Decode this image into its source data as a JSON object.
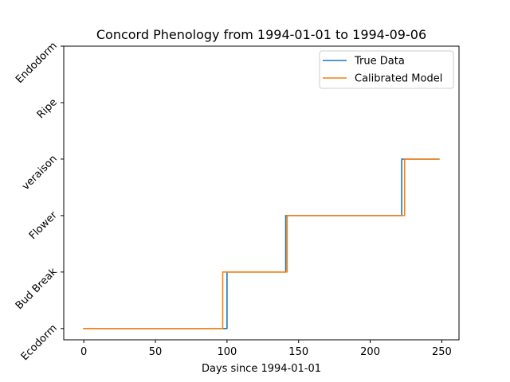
{
  "chart_data": {
    "type": "line",
    "title": "Concord Phenology from 1994-01-01 to 1994-09-06",
    "xlabel": "Days since 1994-01-01",
    "ylabel": "",
    "xlim": [
      -14,
      262
    ],
    "ylim": [
      -0.2,
      5.0
    ],
    "x_ticks": [
      0,
      50,
      100,
      150,
      200,
      250
    ],
    "y_ticks": [
      0,
      1,
      2,
      3,
      4,
      5
    ],
    "y_tick_labels": [
      "Ecodorm",
      "Bud Break",
      "Flower",
      "veraison",
      "Ripe",
      "Endodorm"
    ],
    "grid": false,
    "legend_position": "upper right",
    "series": [
      {
        "name": "True Data",
        "color": "#1f77b4",
        "x": [
          0,
          100,
          100,
          141,
          141,
          222,
          222,
          248
        ],
        "y": [
          0,
          0,
          1,
          1,
          2,
          2,
          3,
          3
        ]
      },
      {
        "name": "Calibrated Model",
        "color": "#ff7f0e",
        "x": [
          0,
          97,
          97,
          142,
          142,
          224,
          224,
          248
        ],
        "y": [
          0,
          0,
          1,
          1,
          2,
          2,
          3,
          3
        ]
      }
    ]
  }
}
